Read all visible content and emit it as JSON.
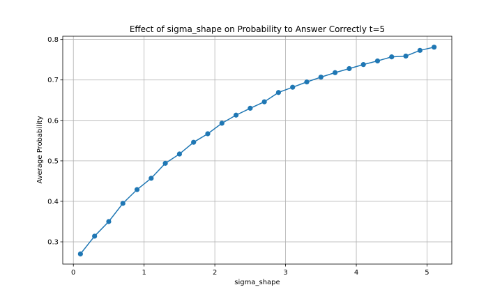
{
  "chart_data": {
    "type": "line",
    "title": "Effect of sigma_shape on Probability to Answer Correctly t=5",
    "xlabel": "sigma_shape",
    "ylabel": "Average Probability",
    "xlim": [
      -0.15,
      5.35
    ],
    "ylim": [
      0.245,
      0.808
    ],
    "xticks": [
      0,
      1,
      2,
      3,
      4,
      5
    ],
    "xtick_labels": [
      "0",
      "1",
      "2",
      "3",
      "4",
      "5"
    ],
    "yticks": [
      0.3,
      0.4,
      0.5,
      0.6,
      0.7,
      0.8
    ],
    "ytick_labels": [
      "0.3",
      "0.4",
      "0.5",
      "0.6",
      "0.7",
      "0.8"
    ],
    "grid": true,
    "marker": "circle",
    "color": "#1f77b4",
    "series": [
      {
        "x": [
          0.1,
          0.3,
          0.5,
          0.7,
          0.9,
          1.1,
          1.3,
          1.5,
          1.7,
          1.9,
          2.1,
          2.3,
          2.5,
          2.7,
          2.9,
          3.1,
          3.3,
          3.5,
          3.7,
          3.9,
          4.1,
          4.3,
          4.5,
          4.7,
          4.9,
          5.1
        ],
        "y": [
          0.27,
          0.314,
          0.35,
          0.395,
          0.429,
          0.457,
          0.494,
          0.517,
          0.546,
          0.567,
          0.593,
          0.613,
          0.63,
          0.646,
          0.669,
          0.682,
          0.695,
          0.707,
          0.718,
          0.728,
          0.738,
          0.747,
          0.757,
          0.759,
          0.773,
          0.781
        ]
      }
    ]
  }
}
